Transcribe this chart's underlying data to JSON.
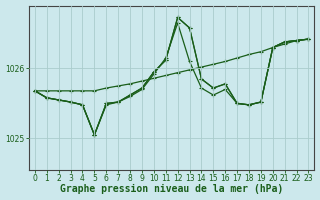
{
  "xlabel": "Graphe pression niveau de la mer (hPa)",
  "background_color": "#cce8ec",
  "grid_color": "#aacccc",
  "line_color": "#1a5e1a",
  "ylim": [
    1024.55,
    1026.9
  ],
  "xlim": [
    -0.5,
    23.5
  ],
  "yticks": [
    1025,
    1026
  ],
  "xticks": [
    0,
    1,
    2,
    3,
    4,
    5,
    6,
    7,
    8,
    9,
    10,
    11,
    12,
    13,
    14,
    15,
    16,
    17,
    18,
    19,
    20,
    21,
    22,
    23
  ],
  "series": [
    [
      1025.68,
      1025.68,
      1025.68,
      1025.68,
      1025.68,
      1025.68,
      1025.72,
      1025.75,
      1025.78,
      1025.82,
      1025.86,
      1025.9,
      1025.94,
      1025.98,
      1026.02,
      1026.06,
      1026.1,
      1026.15,
      1026.2,
      1026.24,
      1026.3,
      1026.35,
      1026.4,
      1026.42
    ],
    [
      1025.68,
      1025.58,
      1025.55,
      1025.52,
      1025.48,
      1025.05,
      1025.48,
      1025.52,
      1025.6,
      1025.7,
      1025.92,
      1026.15,
      1026.65,
      1026.1,
      1025.72,
      1025.62,
      1025.7,
      1025.5,
      1025.48,
      1025.52,
      1026.3,
      1026.38,
      1026.4,
      1026.42
    ],
    [
      1025.68,
      1025.58,
      1025.55,
      1025.52,
      1025.48,
      1025.05,
      1025.5,
      1025.52,
      1025.62,
      1025.72,
      1025.95,
      1026.12,
      1026.73,
      1026.58,
      1025.85,
      1025.72,
      1025.78,
      1025.5,
      1025.48,
      1025.52,
      1026.3,
      1026.38,
      1026.4,
      1026.42
    ],
    [
      1025.68,
      1025.58,
      1025.55,
      1025.52,
      1025.48,
      1025.05,
      1025.5,
      1025.52,
      1025.62,
      1025.72,
      1025.95,
      1026.12,
      1026.73,
      1026.58,
      1025.85,
      1025.72,
      1025.78,
      1025.5,
      1025.48,
      1025.52,
      1026.3,
      1026.38,
      1026.4,
      1026.42
    ]
  ],
  "marker": "+",
  "markersize": 3,
  "linewidth": 0.9,
  "tick_fontsize": 5.5,
  "label_fontsize": 7.0
}
